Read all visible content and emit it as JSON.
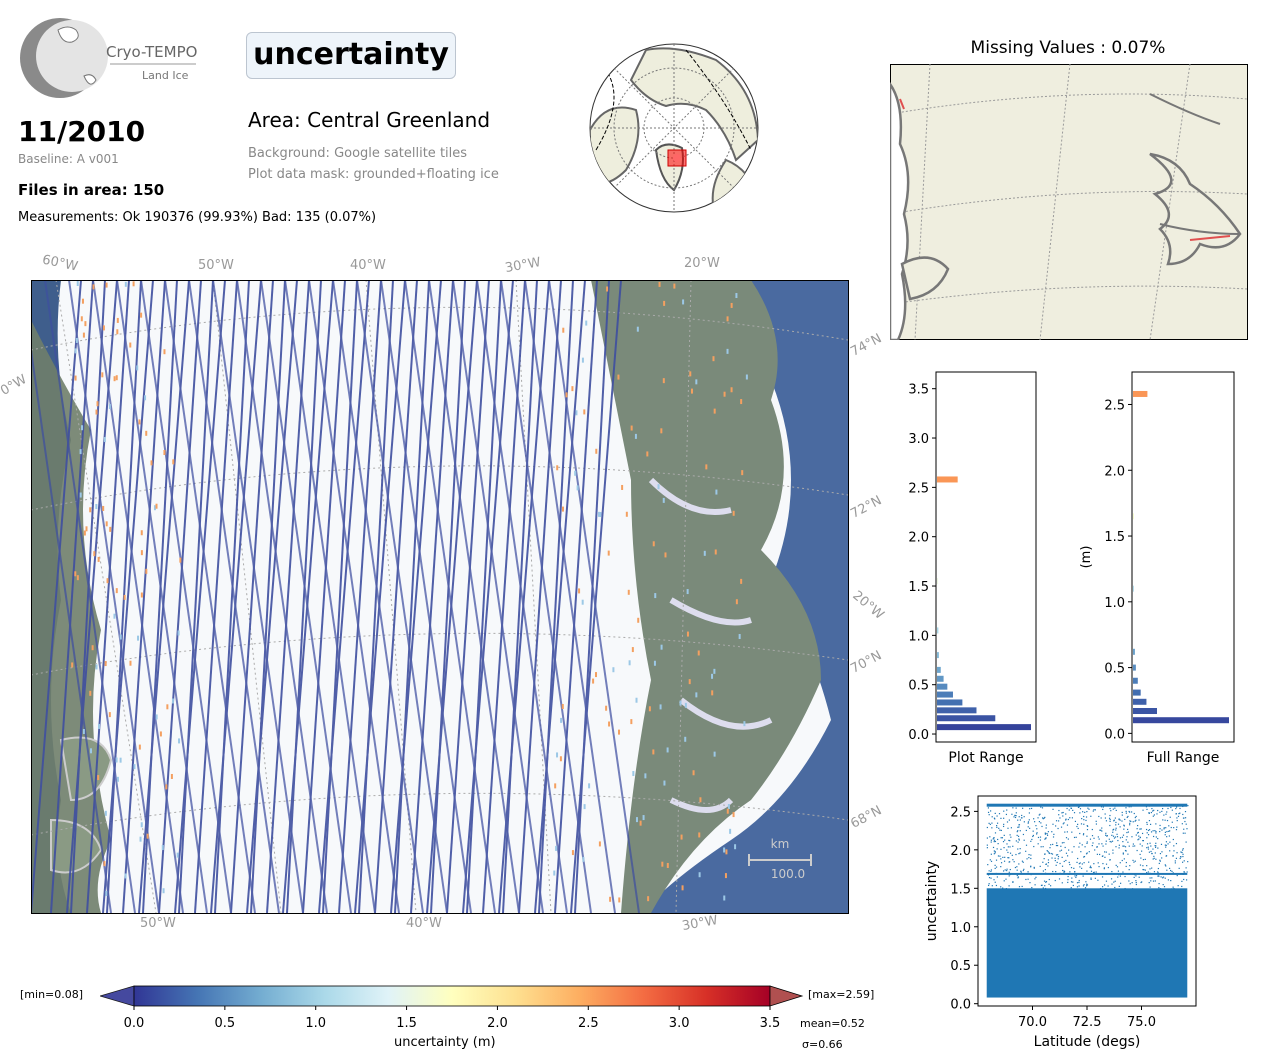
{
  "logo": {
    "line1": "Cryo-TEMPO",
    "line2": "Land Ice"
  },
  "parameter_title": "uncertainty",
  "date": "11/2010",
  "baseline": "Baseline: A v001",
  "files_in_area": "Files in area: 150",
  "measurements": "Measurements: Ok 190376 (99.93%) Bad: 135 (0.07%)",
  "area": "Area: Central Greenland",
  "background_note": "Background: Google satellite tiles",
  "mask_note": "Plot data mask: grounded+floating ice",
  "missing_values_title": "Missing Values : 0.07%",
  "main_map": {
    "lon_labels_top": [
      "60°W",
      "50°W",
      "40°W",
      "30°W",
      "20°W"
    ],
    "lon_labels_bottom": [
      "50°W",
      "40°W",
      "30°W"
    ],
    "lat_labels_right": [
      "74°N",
      "72°N",
      "70°N",
      "68°N"
    ],
    "lon_label_right": "20°W",
    "left_edge_label": "0°W",
    "scalebar_unit": "km",
    "scalebar_value": "100.0"
  },
  "colorbar": {
    "min_label": "[min=0.08]",
    "max_label": "[max=2.59]",
    "ticks": [
      "0.0",
      "0.5",
      "1.0",
      "1.5",
      "2.0",
      "2.5",
      "3.0",
      "3.5"
    ],
    "label": "uncertainty (m)",
    "mean": "mean=0.52",
    "sigma": "σ=0.66",
    "range": [
      0,
      3.5
    ],
    "colors": [
      "#313695",
      "#4575b4",
      "#74add1",
      "#abd9e9",
      "#e0f3f8",
      "#ffffbf",
      "#fee090",
      "#fdae61",
      "#f46d43",
      "#d73027",
      "#a50026"
    ]
  },
  "chart_data": [
    {
      "type": "bar",
      "orientation": "horizontal",
      "xlabel": "Plot Range",
      "y_ticks": [
        "0.0",
        "0.5",
        "1.0",
        "1.5",
        "2.0",
        "2.5",
        "3.0",
        "3.5"
      ],
      "ylim": [
        0,
        3.6
      ],
      "bins": [
        {
          "y": 0.07,
          "w": 1.0
        },
        {
          "y": 0.16,
          "w": 0.62
        },
        {
          "y": 0.24,
          "w": 0.42
        },
        {
          "y": 0.32,
          "w": 0.27
        },
        {
          "y": 0.4,
          "w": 0.17
        },
        {
          "y": 0.48,
          "w": 0.11
        },
        {
          "y": 0.56,
          "w": 0.07
        },
        {
          "y": 0.65,
          "w": 0.04
        },
        {
          "y": 0.8,
          "w": 0.02
        },
        {
          "y": 1.05,
          "w": 0.015
        },
        {
          "y": 1.55,
          "w": 0.01
        },
        {
          "y": 2.58,
          "w": 0.22
        }
      ]
    },
    {
      "type": "bar",
      "orientation": "horizontal",
      "xlabel": "Full Range",
      "ylabel": "(m)",
      "y_ticks": [
        "0.0",
        "0.5",
        "1.0",
        "1.5",
        "2.0",
        "2.5"
      ],
      "ylim": [
        0,
        2.7
      ],
      "bins": [
        {
          "y": 0.1,
          "w": 1.0
        },
        {
          "y": 0.17,
          "w": 0.25
        },
        {
          "y": 0.24,
          "w": 0.14
        },
        {
          "y": 0.31,
          "w": 0.08
        },
        {
          "y": 0.4,
          "w": 0.05
        },
        {
          "y": 0.5,
          "w": 0.03
        },
        {
          "y": 0.62,
          "w": 0.02
        },
        {
          "y": 1.1,
          "w": 0.01
        },
        {
          "y": 1.65,
          "w": 0.01
        },
        {
          "y": 2.58,
          "w": 0.15
        }
      ]
    },
    {
      "type": "scatter",
      "xlabel": "Latitude (degs)",
      "ylabel": "uncertainty",
      "x_ticks": [
        "70.0",
        "72.5",
        "75.0"
      ],
      "y_ticks": [
        "0.0",
        "0.5",
        "1.0",
        "1.5",
        "2.0",
        "2.5"
      ],
      "xlim": [
        67.5,
        77.5
      ],
      "ylim": [
        -0.03,
        2.7
      ],
      "point_x_range": [
        67.9,
        77.1
      ],
      "point_y_range": [
        0.08,
        2.59
      ],
      "color": "#1f77b4"
    }
  ]
}
